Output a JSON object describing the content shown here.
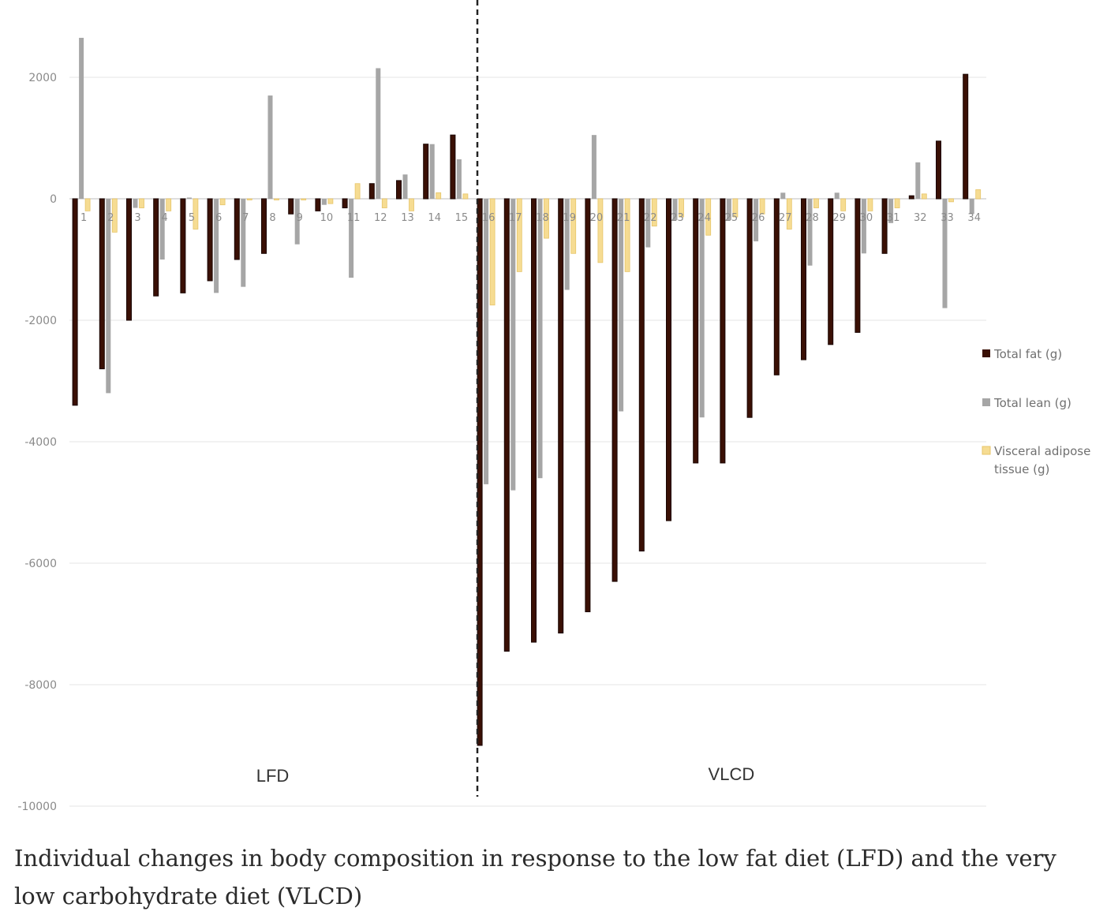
{
  "caption": "Individual changes in body composition in response to the low fat diet (LFD) and the very low carbohydrate diet (VLCD)",
  "chart_data": {
    "type": "bar",
    "categories": [
      "1",
      "2",
      "3",
      "4",
      "5",
      "6",
      "7",
      "8",
      "9",
      "10",
      "11",
      "12",
      "13",
      "14",
      "15",
      "16",
      "17",
      "18",
      "19",
      "20",
      "21",
      "22",
      "23",
      "24",
      "25",
      "26",
      "27",
      "28",
      "29",
      "30",
      "31",
      "32",
      "33",
      "34"
    ],
    "series": [
      {
        "name": "Total fat (g)",
        "color": "#3a1005",
        "values": [
          -3400,
          -2800,
          -2000,
          -1600,
          -1550,
          -1350,
          -1000,
          -900,
          -250,
          -200,
          -150,
          250,
          300,
          900,
          1050,
          -9000,
          -7450,
          -7300,
          -7150,
          -6800,
          -6300,
          -5800,
          -5300,
          -4350,
          -4350,
          -3600,
          -2900,
          -2650,
          -2400,
          -2200,
          -900,
          50,
          950,
          2050
        ]
      },
      {
        "name": "Total lean (g)",
        "color": "#a6a6a6",
        "values": [
          2650,
          -3200,
          -150,
          -1000,
          20,
          -1550,
          -1450,
          1700,
          -750,
          -100,
          -1300,
          2150,
          400,
          900,
          650,
          -4700,
          -4800,
          -4600,
          -1500,
          1050,
          -3500,
          -800,
          -350,
          -3600,
          -350,
          -700,
          100,
          -1100,
          100,
          -900,
          -400,
          600,
          -1800,
          -250
        ]
      },
      {
        "name": "Visceral adipose tissue (g)",
        "color": "#f6dc92",
        "values": [
          -200,
          -550,
          -150,
          -200,
          -500,
          -100,
          -20,
          -20,
          -20,
          -80,
          250,
          -150,
          -200,
          100,
          80,
          -1750,
          -1200,
          -650,
          -900,
          -1050,
          -1200,
          -450,
          -300,
          -600,
          -300,
          -250,
          -500,
          -150,
          -200,
          -200,
          -150,
          80,
          -50,
          150
        ]
      }
    ],
    "y_ticks": [
      "2000",
      "0",
      "-2000",
      "-4000",
      "-6000",
      "-8000",
      "-10000"
    ],
    "ylim": [
      -10000,
      2700
    ],
    "grid": true,
    "legend_position": "right",
    "groups": [
      {
        "label": "LFD",
        "from": 1,
        "to": 15
      },
      {
        "label": "VLCD",
        "from": 16,
        "to": 34
      }
    ],
    "divider_between": [
      15,
      16
    ]
  }
}
